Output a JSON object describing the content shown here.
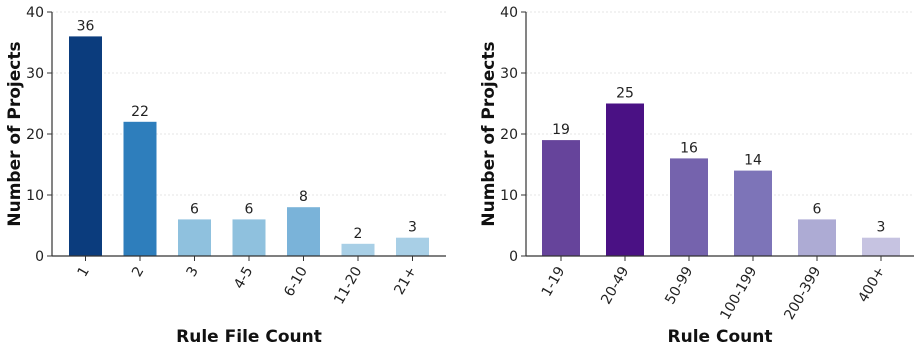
{
  "chart_data": [
    {
      "type": "bar",
      "xlabel": "Rule File Count",
      "ylabel": "Number of Projects",
      "ylim": [
        0,
        40
      ],
      "yticks": [
        0,
        10,
        20,
        30,
        40
      ],
      "grid": "horizontal",
      "categories": [
        "1",
        "2",
        "3",
        "4-5",
        "6-10",
        "11-20",
        "21+"
      ],
      "values": [
        36,
        22,
        6,
        6,
        8,
        2,
        3
      ],
      "colors": [
        "#0b3c7d",
        "#2e7ebc",
        "#8fc1de",
        "#8fc1de",
        "#7ab3d9",
        "#a8cfe6",
        "#a8cfe6"
      ]
    },
    {
      "type": "bar",
      "xlabel": "Rule Count",
      "ylabel": "Number of Projects",
      "ylim": [
        0,
        40
      ],
      "yticks": [
        0,
        10,
        20,
        30,
        40
      ],
      "grid": "horizontal",
      "categories": [
        "1-19",
        "20-49",
        "50-99",
        "100-199",
        "200-399",
        "400+"
      ],
      "values": [
        19,
        25,
        16,
        14,
        6,
        3
      ],
      "colors": [
        "#66449b",
        "#4a1184",
        "#7563ad",
        "#7d74b8",
        "#adabd4",
        "#c6c3e1"
      ]
    }
  ]
}
